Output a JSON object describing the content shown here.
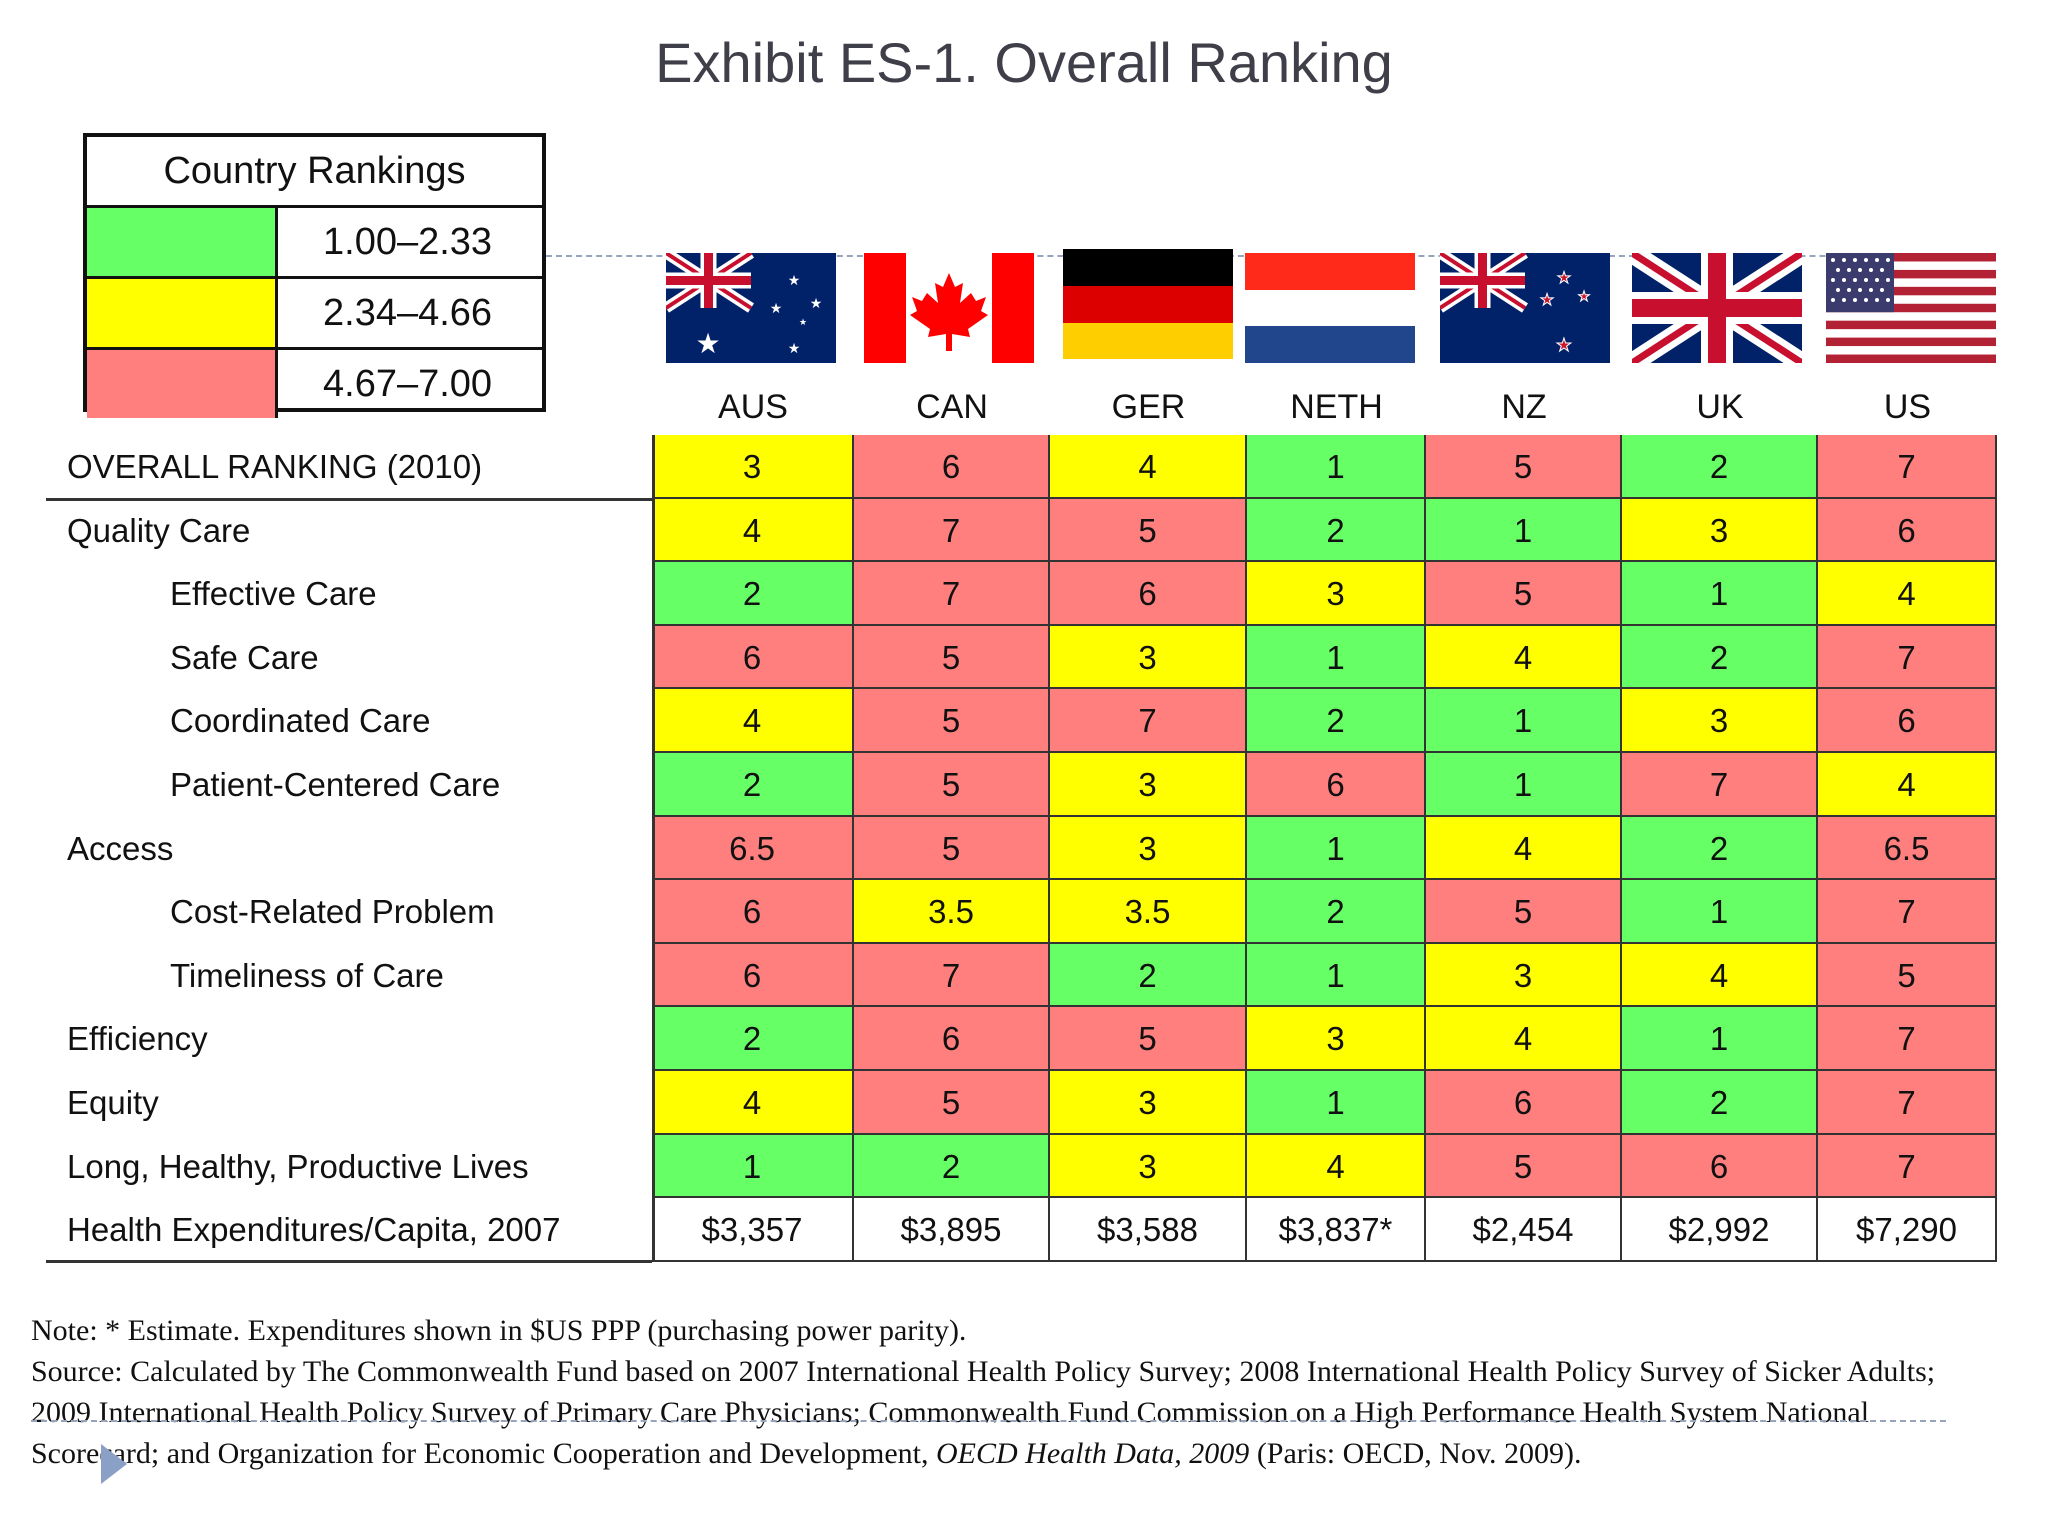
{
  "title": "Exhibit ES-1. Overall Ranking",
  "legend": {
    "header": "Country Rankings",
    "items": [
      {
        "range": "1.00–2.33",
        "color": "#66ff66"
      },
      {
        "range": "2.34–4.66",
        "color": "#ffff00"
      },
      {
        "range": "4.67–7.00",
        "color": "#ff7f7f"
      }
    ]
  },
  "countries": [
    "AUS",
    "CAN",
    "GER",
    "NETH",
    "NZ",
    "UK",
    "US"
  ],
  "chart_data": {
    "type": "table",
    "title": "Exhibit ES-1. Overall Ranking",
    "columns": [
      "AUS",
      "CAN",
      "GER",
      "NETH",
      "NZ",
      "UK",
      "US"
    ],
    "rows": [
      {
        "label": "OVERALL RANKING (2010)",
        "indent": false,
        "values": [
          "3",
          "6",
          "4",
          "1",
          "5",
          "2",
          "7"
        ],
        "colors": [
          "y",
          "r",
          "y",
          "g",
          "r",
          "g",
          "r"
        ]
      },
      {
        "label": "Quality Care",
        "indent": false,
        "values": [
          "4",
          "7",
          "5",
          "2",
          "1",
          "3",
          "6"
        ],
        "colors": [
          "y",
          "r",
          "r",
          "g",
          "g",
          "y",
          "r"
        ]
      },
      {
        "label": "Effective Care",
        "indent": true,
        "values": [
          "2",
          "7",
          "6",
          "3",
          "5",
          "1",
          "4"
        ],
        "colors": [
          "g",
          "r",
          "r",
          "y",
          "r",
          "g",
          "y"
        ]
      },
      {
        "label": "Safe Care",
        "indent": true,
        "values": [
          "6",
          "5",
          "3",
          "1",
          "4",
          "2",
          "7"
        ],
        "colors": [
          "r",
          "r",
          "y",
          "g",
          "y",
          "g",
          "r"
        ]
      },
      {
        "label": "Coordinated Care",
        "indent": true,
        "values": [
          "4",
          "5",
          "7",
          "2",
          "1",
          "3",
          "6"
        ],
        "colors": [
          "y",
          "r",
          "r",
          "g",
          "g",
          "y",
          "r"
        ]
      },
      {
        "label": "Patient-Centered Care",
        "indent": true,
        "values": [
          "2",
          "5",
          "3",
          "6",
          "1",
          "7",
          "4"
        ],
        "colors": [
          "g",
          "r",
          "y",
          "r",
          "g",
          "r",
          "y"
        ]
      },
      {
        "label": "Access",
        "indent": false,
        "values": [
          "6.5",
          "5",
          "3",
          "1",
          "4",
          "2",
          "6.5"
        ],
        "colors": [
          "r",
          "r",
          "y",
          "g",
          "y",
          "g",
          "r"
        ]
      },
      {
        "label": "Cost-Related Problem",
        "indent": true,
        "values": [
          "6",
          "3.5",
          "3.5",
          "2",
          "5",
          "1",
          "7"
        ],
        "colors": [
          "r",
          "y",
          "y",
          "g",
          "r",
          "g",
          "r"
        ]
      },
      {
        "label": "Timeliness of Care",
        "indent": true,
        "values": [
          "6",
          "7",
          "2",
          "1",
          "3",
          "4",
          "5"
        ],
        "colors": [
          "r",
          "r",
          "g",
          "g",
          "y",
          "y",
          "r"
        ]
      },
      {
        "label": "Efficiency",
        "indent": false,
        "values": [
          "2",
          "6",
          "5",
          "3",
          "4",
          "1",
          "7"
        ],
        "colors": [
          "g",
          "r",
          "r",
          "y",
          "y",
          "g",
          "r"
        ]
      },
      {
        "label": "Equity",
        "indent": false,
        "values": [
          "4",
          "5",
          "3",
          "1",
          "6",
          "2",
          "7"
        ],
        "colors": [
          "y",
          "r",
          "y",
          "g",
          "r",
          "g",
          "r"
        ]
      },
      {
        "label": "Long, Healthy, Productive Lives",
        "indent": false,
        "values": [
          "1",
          "2",
          "3",
          "4",
          "5",
          "6",
          "7"
        ],
        "colors": [
          "g",
          "g",
          "y",
          "y",
          "r",
          "r",
          "r"
        ]
      },
      {
        "label": "Health Expenditures/Capita, 2007",
        "indent": false,
        "values": [
          "$3,357",
          "$3,895",
          "$3,588",
          "$3,837*",
          "$2,454",
          "$2,992",
          "$7,290"
        ],
        "colors": [
          "w",
          "w",
          "w",
          "w",
          "w",
          "w",
          "w"
        ]
      }
    ],
    "color_key": {
      "g": "#66ff66",
      "y": "#ffff00",
      "r": "#ff7f7f",
      "w": "#ffffff"
    }
  },
  "note": {
    "line1": "Note: * Estimate. Expenditures shown in $US PPP (purchasing power parity).",
    "source_pre": "Source: Calculated by The Commonwealth Fund based on 2007 International Health Policy Survey; 2008 International Health Policy Survey of Sicker Adults; 2009 International Health Policy Survey of Primary Care Physicians; Commonwealth Fund Commission on a High Performance Health System National Scorecard; and Organization for Economic Cooperation and Development, ",
    "source_italic": "OECD Health Data, 2009",
    "source_post": " (Paris: OECD, Nov. 2009)."
  }
}
